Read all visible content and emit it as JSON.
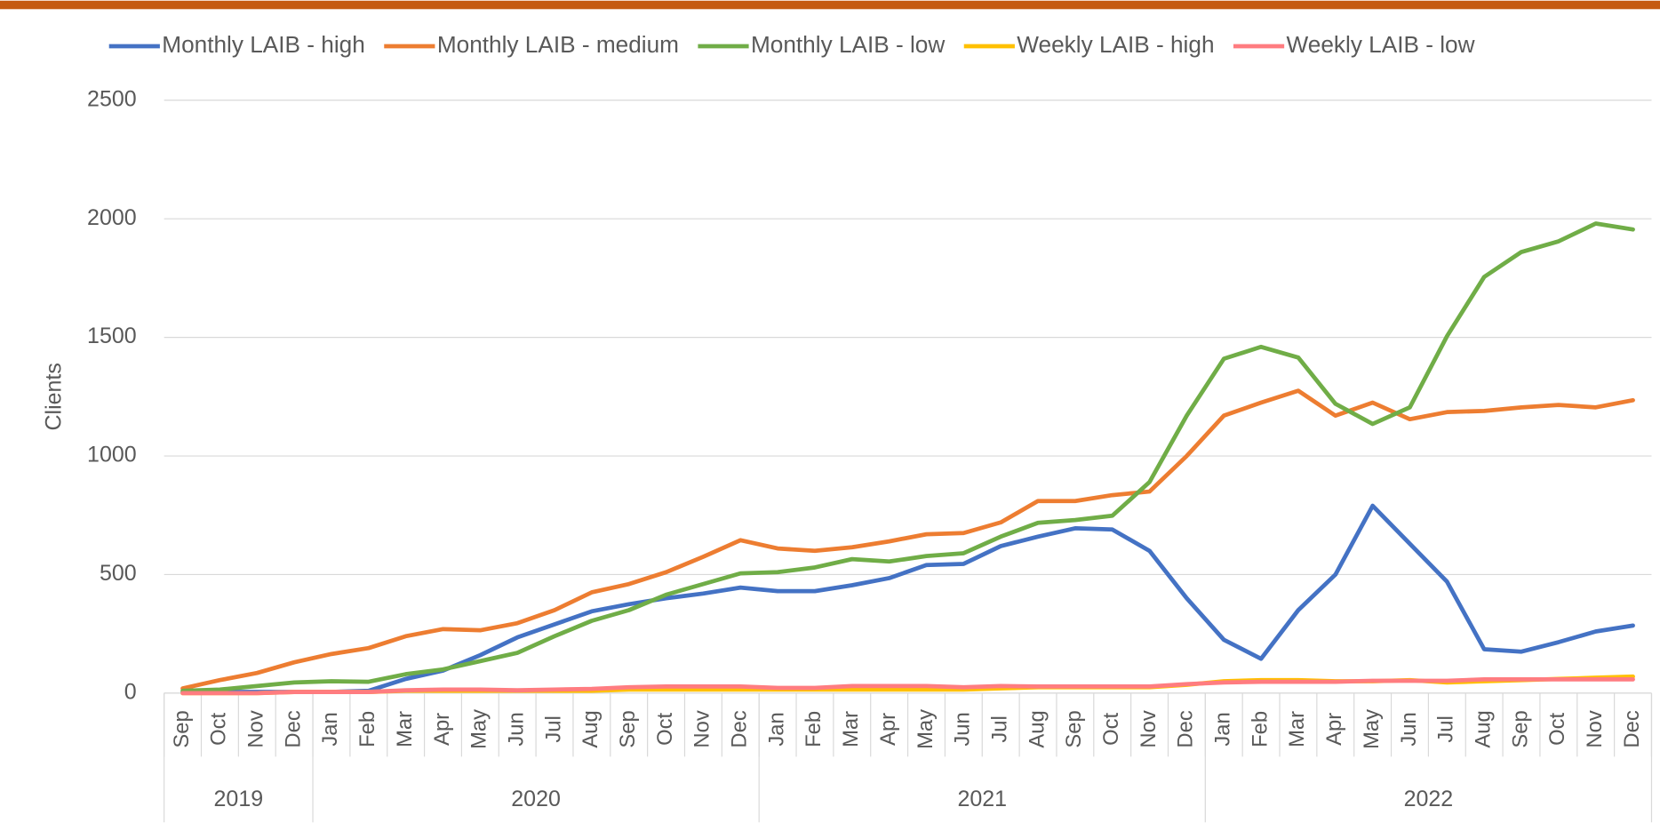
{
  "chart_data": {
    "type": "line",
    "y_label": "Clients",
    "categories": [
      "Sep",
      "Oct",
      "Nov",
      "Dec",
      "Jan",
      "Feb",
      "Mar",
      "Apr",
      "May",
      "Jun",
      "Jul",
      "Aug",
      "Sep",
      "Oct",
      "Nov",
      "Dec",
      "Jan",
      "Feb",
      "Mar",
      "Apr",
      "May",
      "Jun",
      "Jul",
      "Aug",
      "Sep",
      "Oct",
      "Nov",
      "Dec",
      "Jan",
      "Feb",
      "Mar",
      "Apr",
      "May",
      "Jun",
      "Jul",
      "Aug",
      "Sep",
      "Oct",
      "Nov",
      "Dec"
    ],
    "category_groups": [
      "2019",
      "2019",
      "2019",
      "2019",
      "2020",
      "2020",
      "2020",
      "2020",
      "2020",
      "2020",
      "2020",
      "2020",
      "2020",
      "2020",
      "2020",
      "2020",
      "2021",
      "2021",
      "2021",
      "2021",
      "2021",
      "2021",
      "2021",
      "2021",
      "2021",
      "2021",
      "2021",
      "2021",
      "2022",
      "2022",
      "2022",
      "2022",
      "2022",
      "2022",
      "2022",
      "2022",
      "2022",
      "2022",
      "2022",
      "2022"
    ],
    "series": [
      {
        "name": "Monthly LAIB - high",
        "color": "#4472c4",
        "values": [
          5,
          5,
          5,
          5,
          5,
          10,
          60,
          95,
          160,
          235,
          290,
          345,
          375,
          400,
          420,
          445,
          430,
          430,
          455,
          485,
          540,
          545,
          620,
          660,
          695,
          690,
          600,
          400,
          225,
          145,
          350,
          500,
          790,
          630,
          470,
          185,
          175,
          215,
          260,
          285
        ]
      },
      {
        "name": "Monthly LAIB - medium",
        "color": "#ed7d31",
        "values": [
          20,
          55,
          85,
          130,
          165,
          190,
          240,
          270,
          265,
          295,
          350,
          425,
          460,
          510,
          575,
          645,
          610,
          600,
          615,
          640,
          670,
          675,
          720,
          810,
          810,
          835,
          850,
          1000,
          1170,
          1225,
          1275,
          1170,
          1225,
          1155,
          1185,
          1190,
          1205,
          1215,
          1205,
          1235
        ]
      },
      {
        "name": "Monthly LAIB - low",
        "color": "#70ad47",
        "values": [
          10,
          15,
          30,
          45,
          50,
          48,
          80,
          100,
          135,
          170,
          240,
          305,
          350,
          415,
          460,
          505,
          510,
          530,
          565,
          555,
          578,
          590,
          660,
          718,
          730,
          748,
          890,
          1170,
          1410,
          1460,
          1415,
          1220,
          1135,
          1205,
          1505,
          1755,
          1860,
          1905,
          1980,
          1955
        ]
      },
      {
        "name": "Weekly LAIB - high",
        "color": "#ffc000",
        "values": [
          0,
          0,
          0,
          5,
          5,
          5,
          10,
          10,
          10,
          10,
          10,
          10,
          15,
          15,
          15,
          15,
          15,
          15,
          15,
          15,
          15,
          15,
          20,
          25,
          25,
          25,
          25,
          35,
          50,
          55,
          55,
          50,
          50,
          55,
          45,
          50,
          55,
          60,
          65,
          70
        ]
      },
      {
        "name": "Weekly LAIB - low",
        "color": "#ff7c80",
        "values": [
          0,
          0,
          0,
          5,
          5,
          5,
          12,
          15,
          15,
          12,
          15,
          18,
          25,
          28,
          28,
          28,
          22,
          22,
          30,
          30,
          30,
          25,
          30,
          28,
          28,
          28,
          28,
          38,
          45,
          48,
          48,
          48,
          52,
          52,
          52,
          58,
          58,
          58,
          58,
          58
        ]
      }
    ],
    "ylim": [
      0,
      2500
    ],
    "yticks": [
      0,
      500,
      1000,
      1500,
      2000,
      2500
    ],
    "grid": true,
    "legend": "top"
  }
}
